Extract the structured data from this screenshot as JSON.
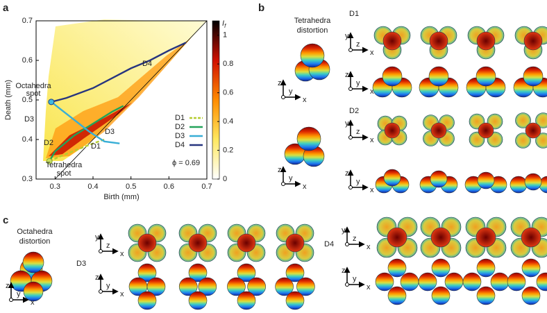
{
  "panel_labels": [
    "a",
    "b",
    "c"
  ],
  "chart_data": {
    "type": "line",
    "xlabel": "Birth (mm)",
    "ylabel": "Death (mm)",
    "xlim": [
      0.25,
      0.7
    ],
    "ylim": [
      0.3,
      0.7
    ],
    "xticks": [
      0.3,
      0.4,
      0.5,
      0.6,
      0.7
    ],
    "yticks": [
      0.3,
      0.4,
      0.5,
      0.6,
      0.7
    ],
    "legend": "lower right",
    "series": [
      {
        "name": "D1",
        "color": "#b5cc30",
        "dashed": true,
        "x": [
          0.285,
          0.32,
          0.36,
          0.4,
          0.43
        ],
        "values": [
          0.345,
          0.36,
          0.375,
          0.39,
          0.4
        ]
      },
      {
        "name": "D2",
        "color": "#23a35a",
        "dashed": false,
        "x": [
          0.285,
          0.3,
          0.35,
          0.4,
          0.45,
          0.48
        ],
        "values": [
          0.345,
          0.37,
          0.41,
          0.44,
          0.47,
          0.485
        ]
      },
      {
        "name": "D3",
        "color": "#38aed6",
        "dashed": false,
        "x": [
          0.29,
          0.31,
          0.35,
          0.39,
          0.43,
          0.47
        ],
        "values": [
          0.495,
          0.48,
          0.45,
          0.42,
          0.395,
          0.39
        ]
      },
      {
        "name": "D4",
        "color": "#27357f",
        "dashed": false,
        "x": [
          0.29,
          0.33,
          0.4,
          0.45,
          0.5,
          0.55,
          0.6,
          0.645
        ],
        "values": [
          0.495,
          0.505,
          0.53,
          0.555,
          0.58,
          0.6,
          0.625,
          0.645
        ]
      }
    ],
    "annotations": {
      "octahedra_spot": [
        "Octahedra",
        "spot"
      ],
      "tetrahedra_spot": [
        "Tetrahedra",
        "spot"
      ],
      "phi": "ϕ = 0.69"
    },
    "colorbar": {
      "label": "I",
      "label_sub": "f",
      "lim": [
        0,
        1.1
      ],
      "ticks": [
        0,
        0.2,
        0.4,
        0.6,
        0.8,
        1
      ]
    }
  },
  "panel_b": {
    "title": [
      "Tetrahedra",
      "distortion"
    ]
  },
  "panel_c": {
    "title": [
      "Octahedra",
      "distortion"
    ]
  },
  "triad_labels": {
    "x": "x",
    "y": "y",
    "z": "z"
  }
}
